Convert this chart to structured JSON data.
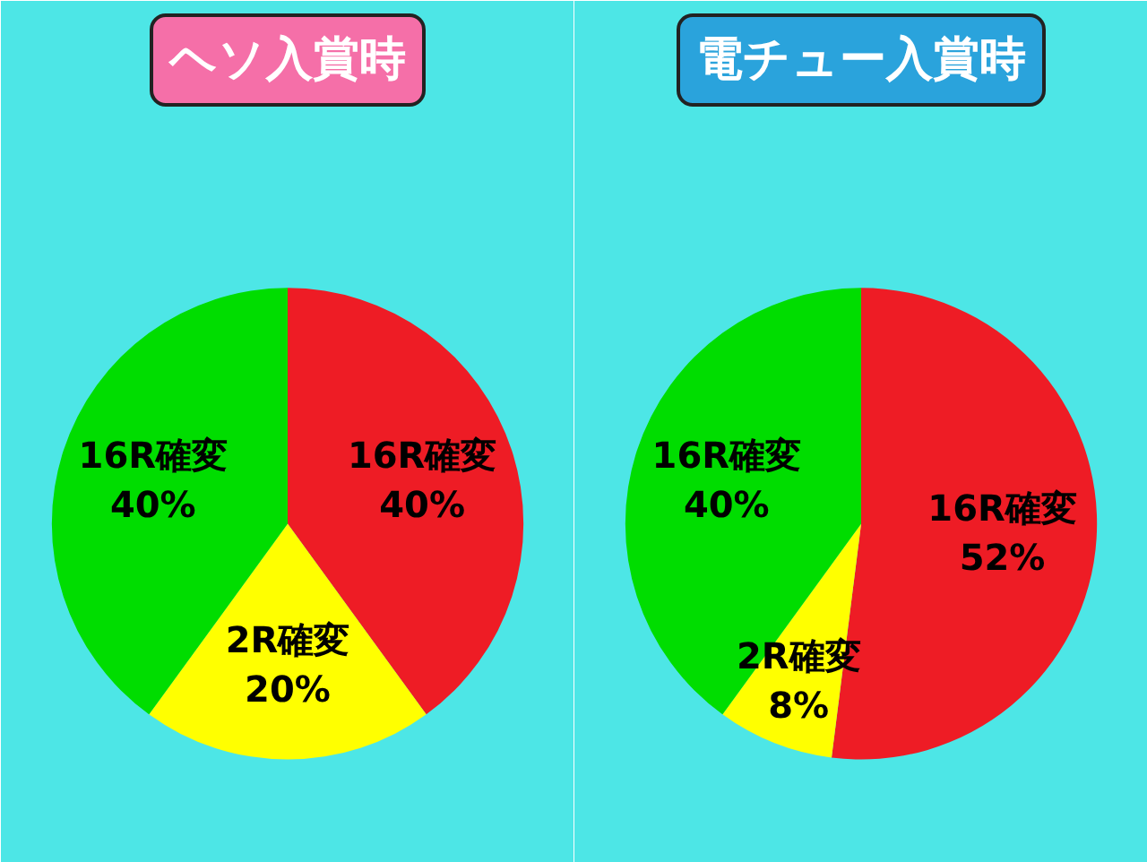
{
  "chart_data": [
    {
      "type": "pie",
      "title": "ヘソ入賞時",
      "categories": [
        "16R確変",
        "2R確変",
        "16R確変"
      ],
      "values": [
        40,
        20,
        40
      ],
      "colors": [
        "#ee1c25",
        "#ffff00",
        "#00dd00"
      ],
      "value_labels": [
        "40%",
        "20%",
        "40%"
      ]
    },
    {
      "type": "pie",
      "title": "電チュー入賞時",
      "categories": [
        "16R確変",
        "2R確変",
        "16R確変"
      ],
      "values": [
        52,
        8,
        40
      ],
      "colors": [
        "#ee1c25",
        "#ffff00",
        "#00dd00"
      ],
      "value_labels": [
        "52%",
        "8%",
        "40%"
      ]
    }
  ]
}
